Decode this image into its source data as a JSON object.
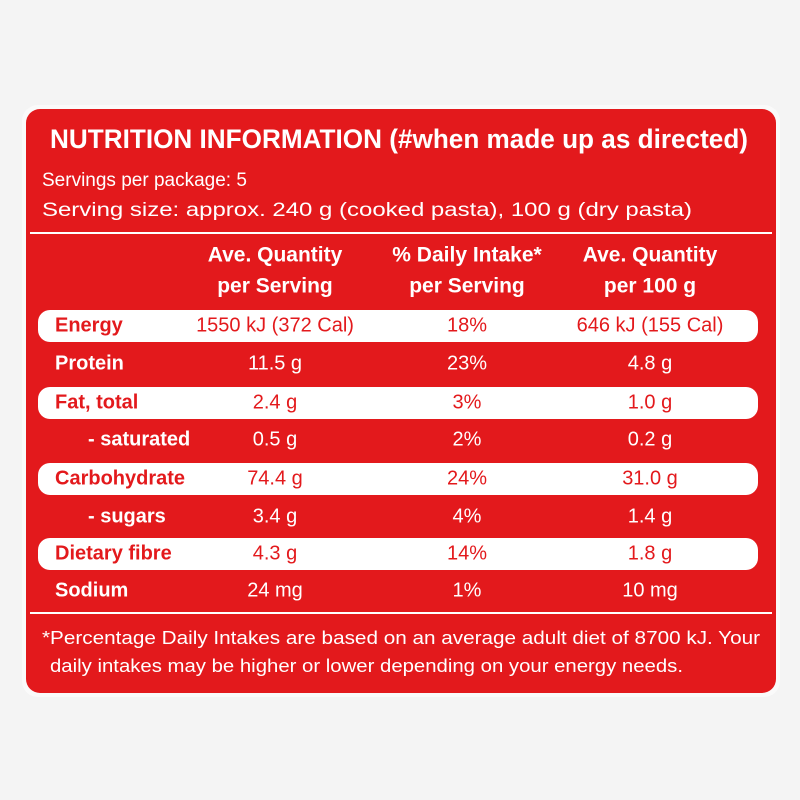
{
  "header": {
    "title": "NUTRITION INFORMATION (#when made up as directed)",
    "servings_per_package": "Servings per package: 5",
    "serving_size": "Serving size: approx. 240 g (cooked pasta), 100 g (dry pasta)"
  },
  "table": {
    "column_headers": [
      [
        "Ave. Quantity",
        "per Serving"
      ],
      [
        "% Daily Intake*",
        "per Serving"
      ],
      [
        "Ave. Quantity",
        "per 100 g"
      ]
    ],
    "rows": [
      [
        "Energy",
        "1550 kJ (372 Cal)",
        "18%",
        "646 kJ (155 Cal)"
      ],
      [
        "Protein",
        "11.5 g",
        "23%",
        "4.8 g"
      ],
      [
        "Fat, total",
        "2.4 g",
        "3%",
        "1.0 g"
      ],
      [
        "- saturated",
        "0.5 g",
        "2%",
        "0.2 g"
      ],
      [
        "Carbohydrate",
        "74.4 g",
        "24%",
        "31.0 g"
      ],
      [
        "- sugars",
        "3.4 g",
        "4%",
        "1.4 g"
      ],
      [
        "Dietary fibre",
        "4.3 g",
        "14%",
        "1.8 g"
      ],
      [
        "Sodium",
        "24 mg",
        "1%",
        "10 mg"
      ]
    ]
  },
  "footnote": [
    "*Percentage Daily Intakes are based on an average adult diet of 8700 kJ. Your",
    "daily intakes may be higher or lower depending on your energy needs."
  ]
}
